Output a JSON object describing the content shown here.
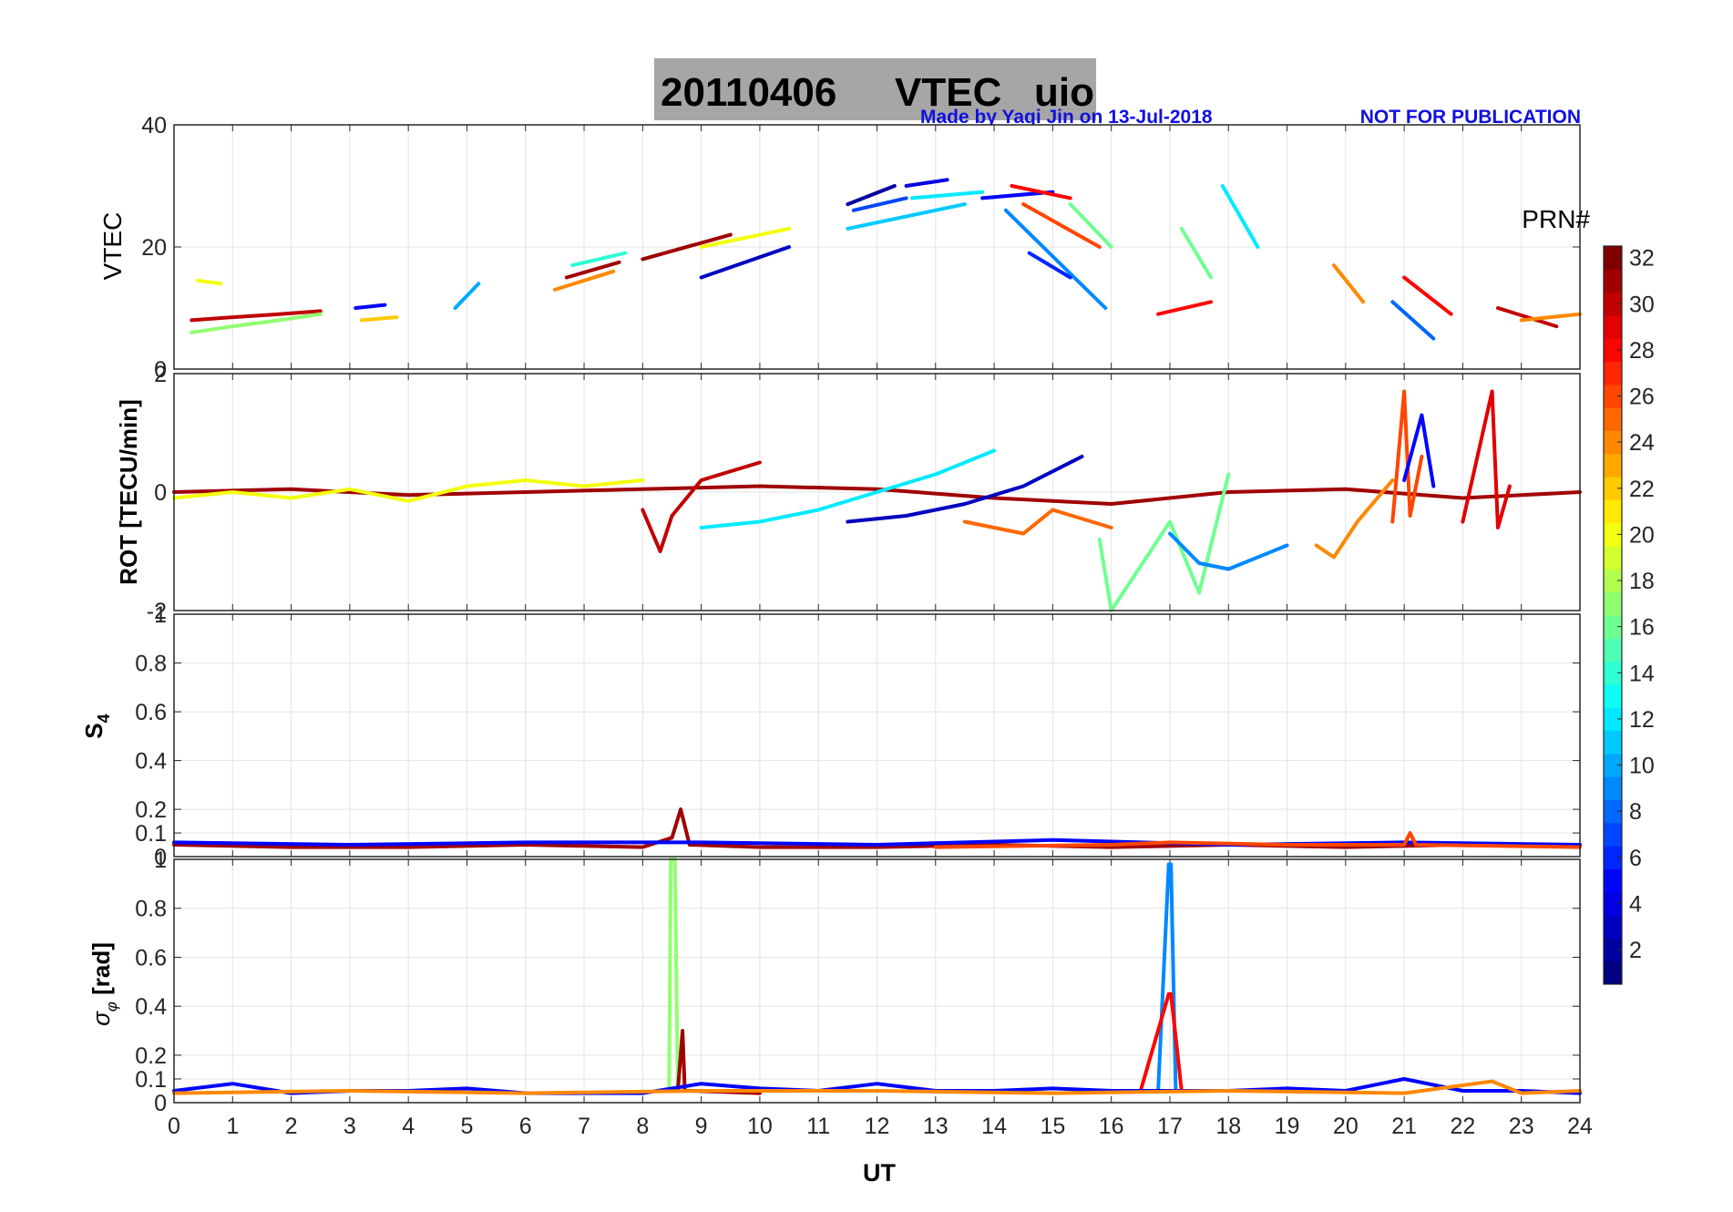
{
  "title": {
    "date": "20110406",
    "product": "VTEC",
    "station": "uio"
  },
  "credit": {
    "author": "Made by Yaqi Jin on 13-Jul-2018",
    "notice": "NOT FOR PUBLICATION"
  },
  "colorbar": {
    "label": "PRN#",
    "range": [
      1,
      32
    ],
    "ticks": [
      "2",
      "4",
      "6",
      "8",
      "10",
      "12",
      "14",
      "16",
      "18",
      "20",
      "22",
      "24",
      "26",
      "28",
      "30",
      "32"
    ]
  },
  "chart_data": [
    {
      "type": "line",
      "panel": "vtec",
      "ylabel": "VTEC",
      "xlabel": "",
      "ylim": [
        0,
        40
      ],
      "yticks": [
        "0",
        "20",
        "40"
      ],
      "xlim": [
        0,
        24
      ],
      "grid": true,
      "series": [
        {
          "prn": 30,
          "x": [
            0.3,
            1.0,
            1.8,
            2.5
          ],
          "y": [
            8,
            8.5,
            9,
            9.5
          ]
        },
        {
          "prn": 17,
          "x": [
            0.3,
            1.0,
            1.8,
            2.5
          ],
          "y": [
            6,
            7,
            8,
            9
          ]
        },
        {
          "prn": 20,
          "x": [
            0.4,
            0.8
          ],
          "y": [
            14.5,
            14
          ]
        },
        {
          "prn": 5,
          "x": [
            3.1,
            3.6
          ],
          "y": [
            10,
            10.5
          ]
        },
        {
          "prn": 22,
          "x": [
            3.2,
            3.8
          ],
          "y": [
            8,
            8.5
          ]
        },
        {
          "prn": 10,
          "x": [
            4.8,
            5.2
          ],
          "y": [
            10,
            14
          ]
        },
        {
          "prn": 24,
          "x": [
            6.5,
            7.5
          ],
          "y": [
            13,
            16
          ]
        },
        {
          "prn": 31,
          "x": [
            6.7,
            7.6
          ],
          "y": [
            15,
            17.5
          ]
        },
        {
          "prn": 14,
          "x": [
            6.8,
            7.7
          ],
          "y": [
            17,
            19
          ]
        },
        {
          "prn": 31,
          "x": [
            8.0,
            9.5
          ],
          "y": [
            18,
            22
          ]
        },
        {
          "prn": 20,
          "x": [
            9.0,
            10.5
          ],
          "y": [
            20,
            23
          ]
        },
        {
          "prn": 3,
          "x": [
            9.0,
            10.5
          ],
          "y": [
            15,
            20
          ]
        },
        {
          "prn": 2,
          "x": [
            11.5,
            12.3
          ],
          "y": [
            27,
            30
          ]
        },
        {
          "prn": 7,
          "x": [
            11.6,
            12.5
          ],
          "y": [
            26,
            28
          ]
        },
        {
          "prn": 11,
          "x": [
            11.5,
            13.5
          ],
          "y": [
            23,
            27
          ]
        },
        {
          "prn": 4,
          "x": [
            12.5,
            13.2
          ],
          "y": [
            30,
            31
          ]
        },
        {
          "prn": 12,
          "x": [
            12.6,
            13.8
          ],
          "y": [
            28,
            29
          ]
        },
        {
          "prn": 5,
          "x": [
            13.8,
            15.0
          ],
          "y": [
            28,
            29
          ]
        },
        {
          "prn": 28,
          "x": [
            14.3,
            15.3
          ],
          "y": [
            30,
            28
          ]
        },
        {
          "prn": 26,
          "x": [
            14.5,
            15.8
          ],
          "y": [
            27,
            20
          ]
        },
        {
          "prn": 9,
          "x": [
            14.2,
            15.9
          ],
          "y": [
            26,
            10
          ]
        },
        {
          "prn": 6,
          "x": [
            14.6,
            15.3
          ],
          "y": [
            19,
            15
          ]
        },
        {
          "prn": 16,
          "x": [
            15.3,
            16.0
          ],
          "y": [
            27,
            20
          ]
        },
        {
          "prn": 28,
          "x": [
            16.8,
            17.7
          ],
          "y": [
            9,
            11
          ]
        },
        {
          "prn": 16,
          "x": [
            17.2,
            17.7
          ],
          "y": [
            23,
            15
          ]
        },
        {
          "prn": 12,
          "x": [
            17.9,
            18.5
          ],
          "y": [
            30,
            20
          ]
        },
        {
          "prn": 24,
          "x": [
            19.8,
            20.3
          ],
          "y": [
            17,
            11
          ]
        },
        {
          "prn": 8,
          "x": [
            20.8,
            21.5
          ],
          "y": [
            11,
            5
          ]
        },
        {
          "prn": 28,
          "x": [
            21.0,
            21.8
          ],
          "y": [
            15,
            9
          ]
        },
        {
          "prn": 30,
          "x": [
            22.6,
            23.6
          ],
          "y": [
            10,
            7
          ]
        },
        {
          "prn": 24,
          "x": [
            23.0,
            24.0
          ],
          "y": [
            8,
            9
          ]
        }
      ]
    },
    {
      "type": "line",
      "panel": "rot",
      "ylabel": "ROT [TECU/min]",
      "xlabel": "",
      "ylim": [
        -2,
        2
      ],
      "yticks": [
        "-2",
        "0",
        "2"
      ],
      "xlim": [
        0,
        24
      ],
      "grid": true,
      "series": [
        {
          "prn": 31,
          "x": [
            0,
            2,
            4,
            6,
            8,
            10,
            12,
            14,
            16,
            18,
            20,
            22,
            24
          ],
          "y": [
            0,
            0.05,
            -0.05,
            0,
            0.05,
            0.1,
            0.05,
            -0.1,
            -0.2,
            0,
            0.05,
            -0.1,
            0
          ]
        },
        {
          "prn": 20,
          "x": [
            0,
            1,
            2,
            3,
            4,
            5,
            6,
            7,
            8
          ],
          "y": [
            -0.1,
            0,
            -0.1,
            0.05,
            -0.15,
            0.1,
            0.2,
            0.1,
            0.2
          ]
        },
        {
          "prn": 30,
          "x": [
            8.0,
            8.3,
            8.5,
            9.0,
            10.0
          ],
          "y": [
            -0.3,
            -1.0,
            -0.4,
            0.2,
            0.5
          ]
        },
        {
          "prn": 12,
          "x": [
            9.0,
            10.0,
            11.0,
            12.0,
            13.0,
            14.0
          ],
          "y": [
            -0.6,
            -0.5,
            -0.3,
            0.0,
            0.3,
            0.7
          ]
        },
        {
          "prn": 3,
          "x": [
            11.5,
            12.5,
            13.5,
            14.5,
            15.5
          ],
          "y": [
            -0.5,
            -0.4,
            -0.2,
            0.1,
            0.6
          ]
        },
        {
          "prn": 25,
          "x": [
            13.5,
            14.5,
            15.0,
            16.0
          ],
          "y": [
            -0.5,
            -0.7,
            -0.3,
            -0.6
          ]
        },
        {
          "prn": 16,
          "x": [
            15.8,
            16.0,
            16.4,
            17.0,
            17.5,
            18.0
          ],
          "y": [
            -0.8,
            -2.0,
            -1.4,
            -0.5,
            -1.7,
            0.3
          ]
        },
        {
          "prn": 9,
          "x": [
            17.0,
            17.5,
            18.0,
            19.0
          ],
          "y": [
            -0.7,
            -1.2,
            -1.3,
            -0.9
          ]
        },
        {
          "prn": 24,
          "x": [
            19.5,
            19.8,
            20.2,
            20.8
          ],
          "y": [
            -0.9,
            -1.1,
            -0.5,
            0.2
          ]
        },
        {
          "prn": 26,
          "x": [
            20.8,
            21.0,
            21.1,
            21.3
          ],
          "y": [
            -0.5,
            1.7,
            -0.4,
            0.6
          ]
        },
        {
          "prn": 5,
          "x": [
            21.0,
            21.3,
            21.5
          ],
          "y": [
            0.2,
            1.3,
            0.1
          ]
        },
        {
          "prn": 29,
          "x": [
            22.0,
            22.5,
            22.6,
            22.8
          ],
          "y": [
            -0.5,
            1.7,
            -0.6,
            0.1
          ]
        }
      ]
    },
    {
      "type": "line",
      "panel": "s4",
      "ylabel": "S4",
      "xlabel": "",
      "ylim": [
        0,
        1
      ],
      "yticks": [
        "0",
        "0.1",
        "0.2",
        "0.4",
        "0.6",
        "0.8",
        "1"
      ],
      "xlim": [
        0,
        24
      ],
      "grid": true,
      "series": [
        {
          "prn": 31,
          "x": [
            0,
            2,
            4,
            6,
            8,
            8.5,
            8.65,
            8.8,
            10,
            12,
            14,
            16,
            18,
            20,
            22,
            24
          ],
          "y": [
            0.05,
            0.04,
            0.04,
            0.05,
            0.04,
            0.08,
            0.2,
            0.05,
            0.04,
            0.04,
            0.05,
            0.04,
            0.05,
            0.04,
            0.05,
            0.05
          ]
        },
        {
          "prn": 5,
          "x": [
            0,
            3,
            6,
            9,
            12,
            15,
            18,
            21,
            24
          ],
          "y": [
            0.06,
            0.05,
            0.06,
            0.06,
            0.05,
            0.07,
            0.05,
            0.06,
            0.05
          ]
        },
        {
          "prn": 26,
          "x": [
            13,
            16,
            17,
            19,
            21,
            21.1,
            21.2,
            24
          ],
          "y": [
            0.04,
            0.05,
            0.06,
            0.05,
            0.05,
            0.1,
            0.05,
            0.04
          ]
        }
      ]
    },
    {
      "type": "line",
      "panel": "sigma_phi",
      "ylabel": "σφ [rad]",
      "xlabel": "UT",
      "ylim": [
        0,
        1
      ],
      "yticks": [
        "0",
        "0.1",
        "0.2",
        "0.4",
        "0.6",
        "0.8",
        "1"
      ],
      "xlim": [
        0,
        24
      ],
      "xticks": [
        "0",
        "1",
        "2",
        "3",
        "4",
        "5",
        "6",
        "7",
        "8",
        "9",
        "10",
        "11",
        "12",
        "13",
        "14",
        "15",
        "16",
        "17",
        "18",
        "19",
        "20",
        "21",
        "22",
        "23",
        "24"
      ],
      "grid": true,
      "series": [
        {
          "prn": 17,
          "x": [
            8.3,
            8.45,
            8.48,
            8.55,
            8.6
          ],
          "y": [
            0.05,
            0.05,
            1.0,
            1.0,
            0.05
          ]
        },
        {
          "prn": 31,
          "x": [
            8.6,
            8.68,
            8.72,
            8.8,
            10
          ],
          "y": [
            0.05,
            0.3,
            0.05,
            0.05,
            0.04
          ]
        },
        {
          "prn": 9,
          "x": [
            16.8,
            16.98,
            17.02,
            17.1
          ],
          "y": [
            0.05,
            0.98,
            0.98,
            0.05
          ]
        },
        {
          "prn": 28,
          "x": [
            16.5,
            16.98,
            17.02,
            17.2,
            20
          ],
          "y": [
            0.05,
            0.45,
            0.45,
            0.05,
            0.05
          ]
        },
        {
          "prn": 5,
          "x": [
            0,
            1,
            2,
            3,
            4,
            5,
            6,
            7,
            8,
            9,
            10,
            11,
            12,
            13,
            14,
            15,
            16,
            17,
            18,
            19,
            20,
            21,
            22,
            23,
            24
          ],
          "y": [
            0.05,
            0.08,
            0.04,
            0.05,
            0.05,
            0.06,
            0.04,
            0.04,
            0.04,
            0.08,
            0.06,
            0.05,
            0.08,
            0.05,
            0.05,
            0.06,
            0.05,
            0.05,
            0.05,
            0.06,
            0.05,
            0.1,
            0.05,
            0.05,
            0.04
          ]
        },
        {
          "prn": 24,
          "x": [
            0,
            3,
            6,
            9,
            12,
            15,
            18,
            21,
            22.5,
            23,
            24
          ],
          "y": [
            0.04,
            0.05,
            0.04,
            0.05,
            0.05,
            0.04,
            0.05,
            0.04,
            0.09,
            0.04,
            0.05
          ]
        }
      ]
    }
  ]
}
